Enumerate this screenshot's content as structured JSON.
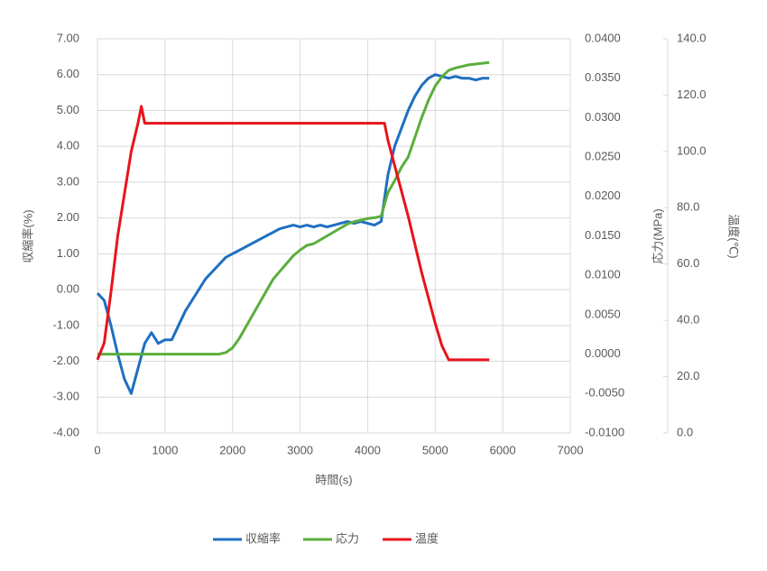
{
  "chart_data": {
    "type": "line",
    "xlabel": "時間(s)",
    "ylabel": "収縮率(%)",
    "y2label": "応力(MPa)",
    "y3label": "温度(℃)",
    "xlim": [
      0,
      7000
    ],
    "xticks": [
      0,
      1000,
      2000,
      3000,
      4000,
      5000,
      6000,
      7000
    ],
    "ylim": [
      -4,
      7
    ],
    "yticks": [
      {
        "value": -4,
        "label": "-4.00"
      },
      {
        "value": -3,
        "label": "-3.00"
      },
      {
        "value": -2,
        "label": "-2.00"
      },
      {
        "value": -1,
        "label": "-1.00"
      },
      {
        "value": 0,
        "label": "0.00"
      },
      {
        "value": 1,
        "label": "1.00"
      },
      {
        "value": 2,
        "label": "2.00"
      },
      {
        "value": 3,
        "label": "3.00"
      },
      {
        "value": 4,
        "label": "4.00"
      },
      {
        "value": 5,
        "label": "5.00"
      },
      {
        "value": 6,
        "label": "6.00"
      },
      {
        "value": 7,
        "label": "7.00"
      }
    ],
    "y2lim": [
      -0.01,
      0.04
    ],
    "y2ticks": [
      {
        "value": -0.01,
        "label": "-0.0100"
      },
      {
        "value": -0.005,
        "label": "-0.0050"
      },
      {
        "value": 0,
        "label": "0.0000"
      },
      {
        "value": 0.005,
        "label": "0.0050"
      },
      {
        "value": 0.01,
        "label": "0.0100"
      },
      {
        "value": 0.015,
        "label": "0.0150"
      },
      {
        "value": 0.02,
        "label": "0.0200"
      },
      {
        "value": 0.025,
        "label": "0.0250"
      },
      {
        "value": 0.03,
        "label": "0.0300"
      },
      {
        "value": 0.035,
        "label": "0.0350"
      },
      {
        "value": 0.04,
        "label": "0.0400"
      }
    ],
    "y3lim": [
      0,
      140
    ],
    "y3ticks": [
      {
        "value": 0,
        "label": "0.0"
      },
      {
        "value": 20,
        "label": "20.0"
      },
      {
        "value": 40,
        "label": "40.0"
      },
      {
        "value": 60,
        "label": "60.0"
      },
      {
        "value": 80,
        "label": "80.0"
      },
      {
        "value": 100,
        "label": "100.0"
      },
      {
        "value": 120,
        "label": "120.0"
      },
      {
        "value": 140,
        "label": "140.0"
      }
    ],
    "grid": true,
    "legend": "bottom",
    "series": [
      {
        "name": "収縮率",
        "color": "#1f6fc1",
        "axis": "y",
        "x": [
          0,
          100,
          200,
          300,
          400,
          500,
          600,
          700,
          800,
          900,
          1000,
          1100,
          1200,
          1300,
          1400,
          1500,
          1600,
          1700,
          1800,
          1900,
          2000,
          2100,
          2200,
          2300,
          2400,
          2500,
          2600,
          2700,
          2800,
          2900,
          3000,
          3100,
          3200,
          3300,
          3400,
          3500,
          3600,
          3700,
          3800,
          3900,
          4000,
          4100,
          4200,
          4300,
          4400,
          4500,
          4600,
          4700,
          4800,
          4900,
          5000,
          5100,
          5200,
          5300,
          5400,
          5500,
          5600,
          5700,
          5800
        ],
        "values": [
          -0.1,
          -0.3,
          -1.0,
          -1.8,
          -2.5,
          -2.9,
          -2.2,
          -1.5,
          -1.2,
          -1.5,
          -1.4,
          -1.4,
          -1.0,
          -0.6,
          -0.3,
          0.0,
          0.3,
          0.5,
          0.7,
          0.9,
          1.0,
          1.1,
          1.2,
          1.3,
          1.4,
          1.5,
          1.6,
          1.7,
          1.75,
          1.8,
          1.75,
          1.8,
          1.75,
          1.8,
          1.75,
          1.8,
          1.85,
          1.9,
          1.85,
          1.9,
          1.85,
          1.8,
          1.9,
          3.2,
          4.0,
          4.5,
          5.0,
          5.4,
          5.7,
          5.9,
          6.0,
          5.95,
          5.9,
          5.95,
          5.9,
          5.9,
          5.85,
          5.9,
          5.9
        ]
      },
      {
        "name": "応力",
        "color": "#5aae3c",
        "axis": "y2",
        "x": [
          0,
          1800,
          1900,
          2000,
          2100,
          2200,
          2300,
          2400,
          2500,
          2600,
          2700,
          2800,
          2900,
          3000,
          3100,
          3200,
          3300,
          3400,
          3500,
          3600,
          3700,
          3800,
          3900,
          4000,
          4100,
          4200,
          4300,
          4400,
          4500,
          4600,
          4700,
          4800,
          4900,
          5000,
          5100,
          5200,
          5300,
          5400,
          5500,
          5600,
          5700,
          5800
        ],
        "values": [
          0,
          0,
          0.0002,
          0.0008,
          0.002,
          0.0035,
          0.005,
          0.0065,
          0.008,
          0.0095,
          0.0105,
          0.0115,
          0.0125,
          0.0132,
          0.0138,
          0.014,
          0.0145,
          0.015,
          0.0155,
          0.016,
          0.0165,
          0.0168,
          0.017,
          0.0172,
          0.0173,
          0.0175,
          0.0205,
          0.022,
          0.0237,
          0.025,
          0.0275,
          0.03,
          0.0322,
          0.034,
          0.0352,
          0.036,
          0.0363,
          0.0365,
          0.0367,
          0.0368,
          0.0369,
          0.037
        ]
      },
      {
        "name": "温度",
        "color": "#e8141b",
        "axis": "y3",
        "x": [
          0,
          100,
          200,
          300,
          400,
          500,
          600,
          650,
          700,
          4200,
          4250,
          4300,
          4400,
          4500,
          4600,
          4700,
          4800,
          4900,
          5000,
          5100,
          5200,
          5800
        ],
        "values": [
          26,
          32,
          50,
          70,
          85,
          100,
          110,
          116,
          110,
          110,
          110,
          104,
          95,
          86,
          77,
          67,
          57,
          48,
          39,
          31,
          26,
          26
        ]
      }
    ]
  }
}
